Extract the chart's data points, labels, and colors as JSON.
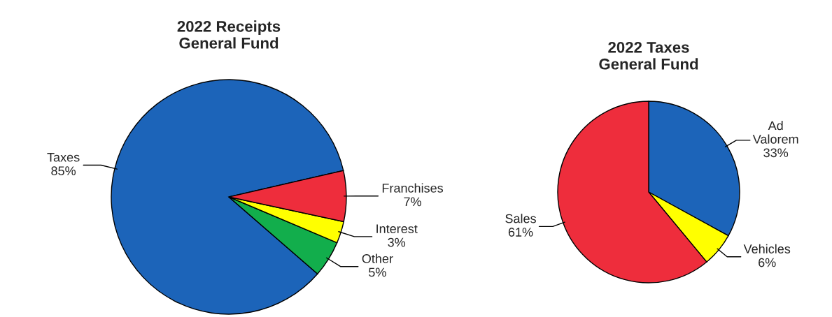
{
  "chart_data": [
    {
      "type": "pie",
      "title": "2022 Receipts\nGeneral Fund",
      "categories": [
        "Taxes",
        "Other",
        "Interest",
        "Franchises"
      ],
      "values": [
        85,
        5,
        3,
        7
      ],
      "colors": [
        "#1c64b9",
        "#12ae4c",
        "#ffff00",
        "#ee2d3c"
      ],
      "value_labels": [
        "85%",
        "5%",
        "3%",
        "7%"
      ]
    },
    {
      "type": "pie",
      "title": "2022 Taxes\nGeneral Fund",
      "categories": [
        "Ad\nValorem",
        "Vehicles",
        "Sales"
      ],
      "values": [
        33,
        6,
        61
      ],
      "colors": [
        "#1c64b9",
        "#ffff00",
        "#ee2d3c"
      ],
      "value_labels": [
        "33%",
        "6%",
        "61%"
      ]
    }
  ]
}
